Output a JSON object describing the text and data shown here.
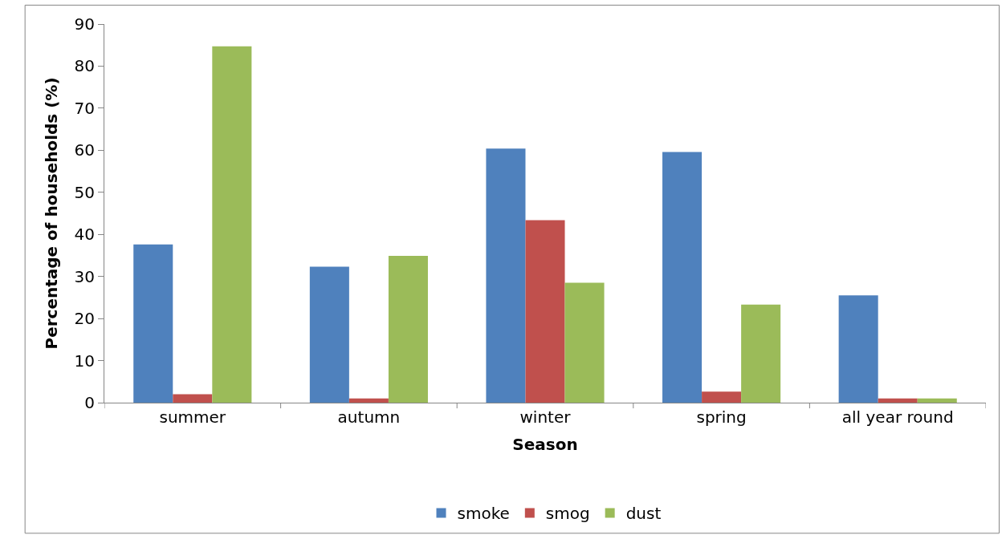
{
  "chart_data": {
    "type": "bar",
    "xlabel": "Season",
    "ylabel": "Percentage of households (%)",
    "categories": [
      "summer",
      "autumn",
      "winter",
      "spring",
      "all year round"
    ],
    "series": [
      {
        "name": "smoke",
        "color": "#4f81bd",
        "values": [
          37.6,
          32.3,
          60.4,
          59.6,
          25.5
        ]
      },
      {
        "name": "smog",
        "color": "#c0504d",
        "values": [
          2.0,
          1.0,
          43.4,
          2.6,
          1.0
        ]
      },
      {
        "name": "dust",
        "color": "#9bbb59",
        "values": [
          84.7,
          34.9,
          28.5,
          23.3,
          1.0
        ]
      }
    ],
    "ylim": [
      0,
      90
    ],
    "yticks": [
      0,
      10,
      20,
      30,
      40,
      50,
      60,
      70,
      80,
      90
    ],
    "legend": "bottom"
  }
}
